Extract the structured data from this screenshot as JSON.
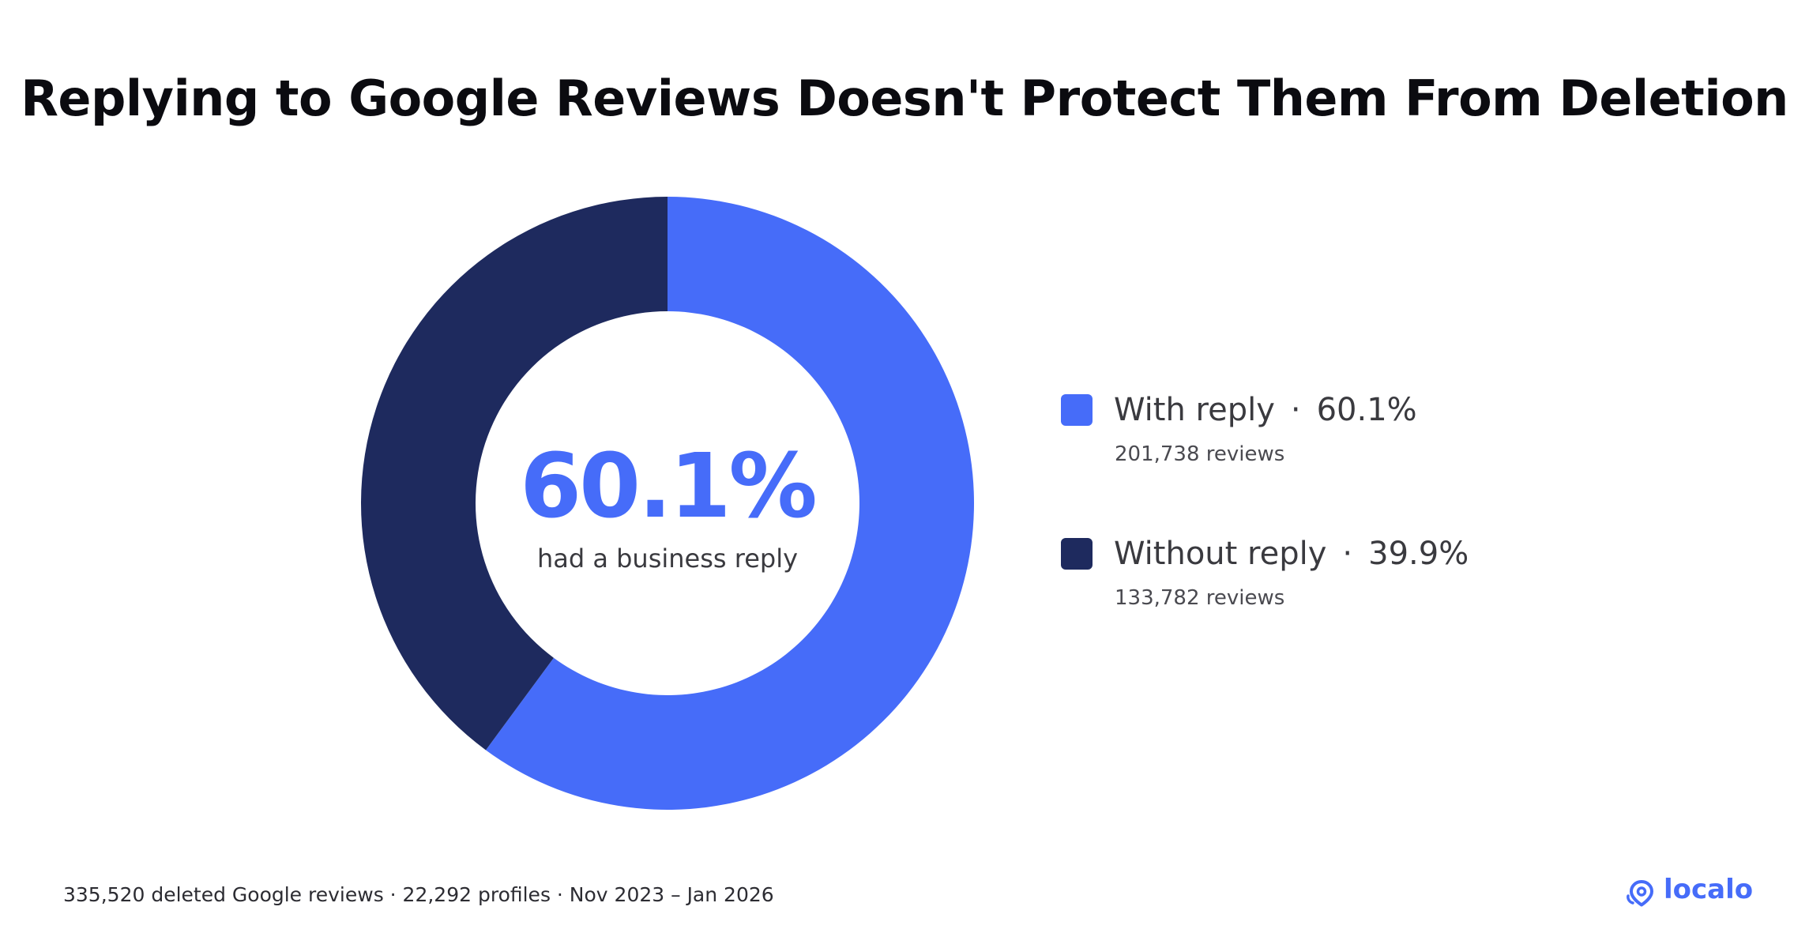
{
  "title": "Replying to Google Reviews Doesn't Protect Them From Deletion",
  "center": {
    "value": "60.1%",
    "caption": "had a business reply"
  },
  "legend": [
    {
      "label": "With reply",
      "percent": "60.1%",
      "sub": "201,738 reviews",
      "color": "#466cf9"
    },
    {
      "label": "Without reply",
      "percent": "39.9%",
      "sub": "133,782 reviews",
      "color": "#1e2a5e"
    }
  ],
  "footer": "335,520 deleted Google reviews · 22,292 profiles · Nov 2023 – Jan 2026",
  "brand": {
    "name": "localo",
    "icon": "location-pin-icon"
  },
  "separator": "·",
  "chart_data": {
    "type": "pie",
    "variant": "donut",
    "categories": [
      "With reply",
      "Without reply"
    ],
    "values": [
      60.1,
      39.9
    ],
    "counts": [
      201738,
      133782
    ],
    "colors": [
      "#466cf9",
      "#1e2a5e"
    ],
    "start": "top",
    "direction": "clockwise",
    "legend_position": "right"
  }
}
